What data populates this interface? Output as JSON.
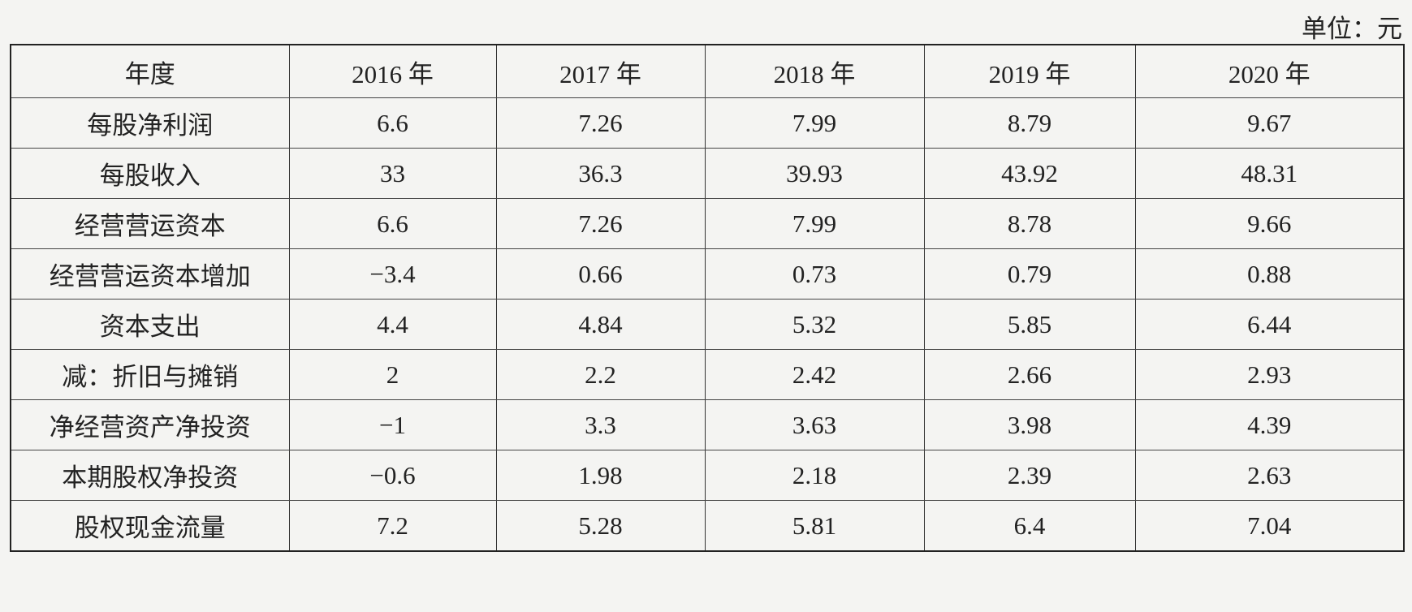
{
  "header": {
    "unit": "单位：元"
  },
  "table": {
    "columns": [
      "年度",
      "2016 年",
      "2017 年",
      "2018 年",
      "2019 年",
      "2020 年"
    ],
    "rows": [
      [
        "每股净利润",
        "6.6",
        "7.26",
        "7.99",
        "8.79",
        "9.67"
      ],
      [
        "每股收入",
        "33",
        "36.3",
        "39.93",
        "43.92",
        "48.31"
      ],
      [
        "经营营运资本",
        "6.6",
        "7.26",
        "7.99",
        "8.78",
        "9.66"
      ],
      [
        "经营营运资本增加",
        "−3.4",
        "0.66",
        "0.73",
        "0.79",
        "0.88"
      ],
      [
        "资本支出",
        "4.4",
        "4.84",
        "5.32",
        "5.85",
        "6.44"
      ],
      [
        "减：折旧与摊销",
        "2",
        "2.2",
        "2.42",
        "2.66",
        "2.93"
      ],
      [
        "净经营资产净投资",
        "−1",
        "3.3",
        "3.63",
        "3.98",
        "4.39"
      ],
      [
        "本期股权净投资",
        "−0.6",
        "1.98",
        "2.18",
        "2.39",
        "2.63"
      ],
      [
        "股权现金流量",
        "7.2",
        "5.28",
        "5.81",
        "6.4",
        "7.04"
      ]
    ]
  }
}
